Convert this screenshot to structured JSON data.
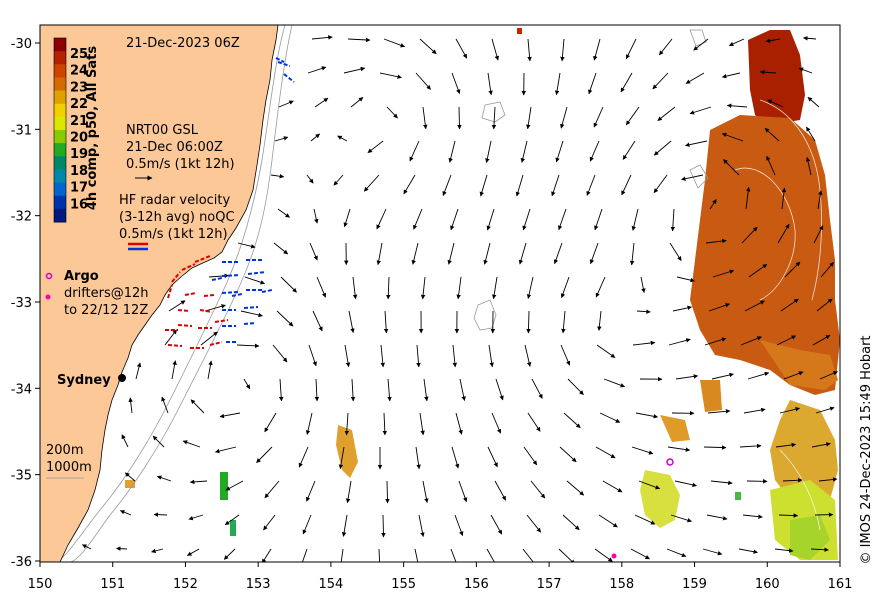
{
  "map": {
    "date_label": "21-Dec-2023 06Z",
    "colorbar": {
      "title": "4h comp, p50, All Sats",
      "ticks": [
        "25",
        "24",
        "23",
        "22",
        "21",
        "20",
        "19",
        "18",
        "17",
        "16"
      ],
      "colors": [
        "#8b0000",
        "#b22200",
        "#cc4400",
        "#d46a00",
        "#e0a000",
        "#f0d000",
        "#d8e800",
        "#88cc00",
        "#22aa22",
        "#008866",
        "#0088aa",
        "#0066cc",
        "#0033aa",
        "#001a80"
      ]
    },
    "gsl": {
      "line1": "NRT00 GSL",
      "line2": "21-Dec 06:00Z",
      "line3": "0.5m/s (1kt 12h)"
    },
    "hf_radar": {
      "line1": "HF radar velocity",
      "line2": "(3-12h avg) noQC",
      "line3": "0.5m/s (1kt 12h)"
    },
    "argo": {
      "label": "Argo",
      "color": "#cc00cc"
    },
    "drifters": {
      "line1": "drifters@12h",
      "line2": "to 22/12 12Z",
      "color": "#ff00aa"
    },
    "city": {
      "name": "Sydney"
    },
    "depth_legend": {
      "line1": "200m",
      "line2": "1000m"
    },
    "credit": "© IMOS 24-Dec-2023 15:49 Hobart",
    "x_ticks": [
      "150",
      "151",
      "152",
      "153",
      "154",
      "155",
      "156",
      "157",
      "158",
      "159",
      "160",
      "161"
    ],
    "y_ticks": [
      "-30",
      "-31",
      "-32",
      "-33",
      "-34",
      "-35",
      "-36"
    ],
    "land_color": "#fcc898",
    "hf_colors": {
      "red": "#dd0000",
      "blue": "#0033dd"
    }
  }
}
